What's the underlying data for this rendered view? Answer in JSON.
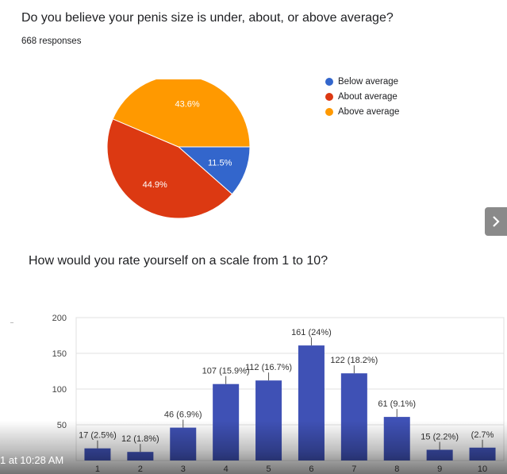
{
  "questions": [
    {
      "title": "Do you believe your penis size is under, about, or above average?",
      "responses": "668 responses"
    },
    {
      "title": "How would you rate yourself on a scale from 1 to 10?"
    }
  ],
  "overlay": {
    "timestamp": "1 at 10:28 AM"
  },
  "chart_data": [
    {
      "type": "pie",
      "categories": [
        "Below average",
        "About average",
        "Above average"
      ],
      "values": [
        11.5,
        44.9,
        43.6
      ],
      "labels": [
        "11.5%",
        "44.9%",
        "43.6%"
      ],
      "colors": [
        "#3366cc",
        "#dc3912",
        "#ff9900"
      ],
      "legend": "right"
    },
    {
      "type": "bar",
      "categories": [
        "1",
        "2",
        "3",
        "4",
        "5",
        "6",
        "7",
        "8",
        "9",
        "10"
      ],
      "values": [
        17,
        12,
        46,
        107,
        112,
        161,
        122,
        61,
        15,
        18
      ],
      "data_labels": [
        "17 (2.5%)",
        "12 (1.8%)",
        "46 (6.9%)",
        "107 (15.9%)",
        "112 (16.7%)",
        "161 (24%)",
        "122 (18.2%)",
        "61 (9.1%)",
        "15 (2.2%)",
        "(2.7%"
      ],
      "ylim": [
        0,
        200
      ],
      "yticks": [
        50,
        100,
        150,
        200
      ],
      "grid": true,
      "color": "#3f51b5"
    }
  ]
}
